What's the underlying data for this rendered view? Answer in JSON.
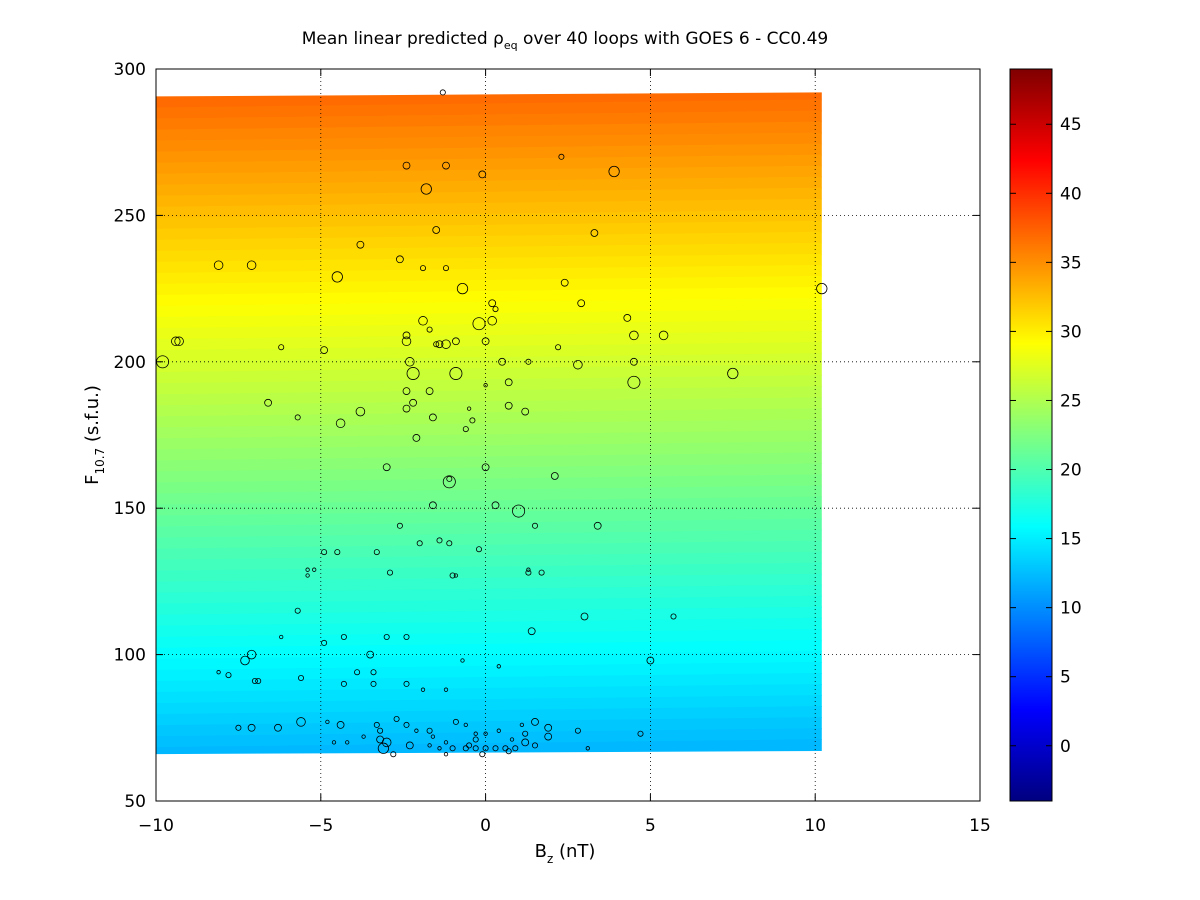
{
  "chart_data": {
    "type": "scatter",
    "title": {
      "main": "Mean linear predicted ",
      "symbol": "ρ",
      "sub": "eq",
      "rest": " over 40 loops with GOES 6 - CC0.49"
    },
    "xlabel": {
      "main": "B",
      "sub": "z",
      "rest": " (nT)"
    },
    "ylabel": {
      "main": "F",
      "sub": "10.7",
      "rest": " (s.f.u.)"
    },
    "xlim": [
      -10,
      15
    ],
    "ylim": [
      50,
      300
    ],
    "xticks": [
      -10,
      -5,
      0,
      5,
      10,
      15
    ],
    "yticks": [
      50,
      100,
      150,
      200,
      250,
      300
    ],
    "xtick_labels": [
      "−10",
      "−5",
      "0",
      "5",
      "10",
      "15"
    ],
    "ytick_labels": [
      "50",
      "100",
      "150",
      "200",
      "250",
      "300"
    ],
    "grid": "dotted",
    "background_field": {
      "x_range": [
        -10,
        10.2
      ],
      "y_range": [
        66,
        292
      ],
      "value_at_min_y": 12,
      "value_at_max_y": 37,
      "colormap": "jet"
    },
    "colorbar": {
      "range": [
        -4,
        49
      ],
      "ticks": [
        0,
        5,
        10,
        15,
        20,
        25,
        30,
        35,
        40,
        45
      ],
      "tick_labels": [
        "0",
        "5",
        "10",
        "15",
        "20",
        "25",
        "30",
        "35",
        "40",
        "45"
      ]
    },
    "points": [
      [
        -1.3,
        292,
        3
      ],
      [
        2.3,
        270,
        3
      ],
      [
        3.9,
        265,
        6
      ],
      [
        -2.4,
        267,
        4
      ],
      [
        -1.2,
        267,
        4
      ],
      [
        -0.1,
        264,
        4
      ],
      [
        -1.8,
        259,
        6
      ],
      [
        -1.5,
        245,
        4
      ],
      [
        3.3,
        244,
        4
      ],
      [
        -3.8,
        240,
        4
      ],
      [
        -2.6,
        235,
        4
      ],
      [
        -8.1,
        233,
        5
      ],
      [
        -7.1,
        233,
        5
      ],
      [
        -1.9,
        232,
        3
      ],
      [
        -1.2,
        232,
        3
      ],
      [
        -4.5,
        229,
        6
      ],
      [
        2.4,
        227,
        4
      ],
      [
        -0.7,
        225,
        6
      ],
      [
        10.2,
        225,
        6
      ],
      [
        0.2,
        220,
        4
      ],
      [
        2.9,
        220,
        4
      ],
      [
        0.3,
        218,
        3
      ],
      [
        4.3,
        215,
        4
      ],
      [
        -1.9,
        214,
        5
      ],
      [
        0.2,
        214,
        5
      ],
      [
        -0.2,
        213,
        7
      ],
      [
        -1.7,
        211,
        3
      ],
      [
        -2.4,
        209,
        4
      ],
      [
        4.5,
        209,
        5
      ],
      [
        5.4,
        209,
        5
      ],
      [
        -9.4,
        207,
        5
      ],
      [
        -9.3,
        207,
        5
      ],
      [
        -2.4,
        207,
        5
      ],
      [
        -0.9,
        207,
        4
      ],
      [
        0,
        207,
        4
      ],
      [
        -1.2,
        206,
        5
      ],
      [
        -1.4,
        206,
        4
      ],
      [
        -1.5,
        206,
        3
      ],
      [
        -6.2,
        205,
        3
      ],
      [
        -4.9,
        204,
        4
      ],
      [
        2.2,
        205,
        3
      ],
      [
        -9.8,
        200,
        7
      ],
      [
        -2.3,
        200,
        5
      ],
      [
        0.5,
        200,
        4
      ],
      [
        1.3,
        200,
        3
      ],
      [
        2.8,
        199,
        5
      ],
      [
        4.5,
        200,
        4
      ],
      [
        -2.2,
        196,
        7
      ],
      [
        -0.9,
        196,
        7
      ],
      [
        7.5,
        196,
        6
      ],
      [
        0.7,
        193,
        4
      ],
      [
        4.5,
        193,
        7
      ],
      [
        0,
        192,
        2
      ],
      [
        -2.4,
        190,
        4
      ],
      [
        -1.7,
        190,
        4
      ],
      [
        -6.6,
        186,
        4
      ],
      [
        -2.2,
        186,
        4
      ],
      [
        -2.4,
        184,
        4
      ],
      [
        0.7,
        185,
        4
      ],
      [
        -3.8,
        183,
        5
      ],
      [
        1.2,
        183,
        4
      ],
      [
        -0.5,
        184,
        2
      ],
      [
        -0.4,
        180,
        3
      ],
      [
        -5.7,
        181,
        3
      ],
      [
        -1.6,
        181,
        4
      ],
      [
        -4.4,
        179,
        5
      ],
      [
        -0.6,
        177,
        3
      ],
      [
        -2.1,
        174,
        4
      ],
      [
        -3,
        164,
        4
      ],
      [
        0,
        164,
        4
      ],
      [
        -1.1,
        160,
        3
      ],
      [
        -1.1,
        159,
        7
      ],
      [
        2.1,
        161,
        4
      ],
      [
        -1.6,
        151,
        4
      ],
      [
        0.3,
        151,
        4
      ],
      [
        1,
        149,
        7
      ],
      [
        -2.6,
        144,
        3
      ],
      [
        1.5,
        144,
        3
      ],
      [
        3.4,
        144,
        4
      ],
      [
        -1.4,
        139,
        3
      ],
      [
        -1.1,
        138,
        3
      ],
      [
        -2,
        138,
        3
      ],
      [
        -4.9,
        135,
        3
      ],
      [
        -4.5,
        135,
        3
      ],
      [
        -3.3,
        135,
        3
      ],
      [
        -0.2,
        136,
        3
      ],
      [
        -5.4,
        129,
        2
      ],
      [
        -5.2,
        129,
        2
      ],
      [
        -2.9,
        128,
        3
      ],
      [
        -1,
        127,
        3
      ],
      [
        -0.9,
        127,
        2
      ],
      [
        1.3,
        129,
        2
      ],
      [
        1.3,
        128,
        3
      ],
      [
        1.7,
        128,
        3
      ],
      [
        -5.4,
        127,
        2
      ],
      [
        -5.7,
        115,
        3
      ],
      [
        3,
        113,
        4
      ],
      [
        5.7,
        113,
        3
      ],
      [
        -6.2,
        106,
        2
      ],
      [
        -4.3,
        106,
        3
      ],
      [
        -3,
        106,
        3
      ],
      [
        -2.4,
        106,
        3
      ],
      [
        1.4,
        108,
        4
      ],
      [
        -4.9,
        104,
        3
      ],
      [
        -7.1,
        100,
        5
      ],
      [
        -3.5,
        100,
        4
      ],
      [
        -7.3,
        98,
        5
      ],
      [
        -0.7,
        98,
        2
      ],
      [
        5,
        98,
        4
      ],
      [
        0.4,
        96,
        2
      ],
      [
        -8.1,
        94,
        2
      ],
      [
        -3.9,
        94,
        3
      ],
      [
        -3.4,
        94,
        3
      ],
      [
        -7.8,
        93,
        3
      ],
      [
        -5.6,
        92,
        3
      ],
      [
        -7,
        91,
        3
      ],
      [
        -6.9,
        91,
        3
      ],
      [
        -4.3,
        90,
        3
      ],
      [
        -3.4,
        90,
        3
      ],
      [
        -2.4,
        90,
        3
      ],
      [
        -1.9,
        88,
        2
      ],
      [
        -1.2,
        88,
        2
      ],
      [
        -7.5,
        75,
        3
      ],
      [
        -7.1,
        75,
        4
      ],
      [
        -6.3,
        75,
        4
      ],
      [
        -5.6,
        77,
        5
      ],
      [
        -4.8,
        77,
        2
      ],
      [
        -4.4,
        76,
        4
      ],
      [
        -3.3,
        76,
        3
      ],
      [
        -3.2,
        74,
        3
      ],
      [
        -2.7,
        78,
        3
      ],
      [
        -2.4,
        76,
        3
      ],
      [
        -2.1,
        74,
        2
      ],
      [
        -1.7,
        74,
        3
      ],
      [
        -1.6,
        72,
        2
      ],
      [
        -1.2,
        70,
        2
      ],
      [
        -0.9,
        77,
        3
      ],
      [
        -0.6,
        76,
        2
      ],
      [
        -0.3,
        73,
        2
      ],
      [
        0,
        73,
        2
      ],
      [
        0.4,
        74,
        2
      ],
      [
        1.1,
        76,
        2
      ],
      [
        1.2,
        73,
        3
      ],
      [
        1.5,
        77,
        4
      ],
      [
        1.9,
        75,
        4
      ],
      [
        2.8,
        74,
        3
      ],
      [
        4.7,
        73,
        3
      ],
      [
        -4.6,
        70,
        2
      ],
      [
        -4.2,
        70,
        2
      ],
      [
        -3.7,
        72,
        2
      ],
      [
        -3.2,
        71,
        4
      ],
      [
        -3,
        70,
        5
      ],
      [
        -2.3,
        69,
        4
      ],
      [
        -1.7,
        69,
        2
      ],
      [
        -1.4,
        68,
        2
      ],
      [
        -1,
        68,
        3
      ],
      [
        -0.6,
        68,
        3
      ],
      [
        -0.5,
        69,
        3
      ],
      [
        -0.3,
        68,
        3
      ],
      [
        0,
        68,
        3
      ],
      [
        0.3,
        68,
        3
      ],
      [
        0.6,
        68,
        3
      ],
      [
        0.7,
        67,
        3
      ],
      [
        0.9,
        68,
        3
      ],
      [
        1.2,
        70,
        4
      ],
      [
        1.5,
        69,
        3
      ],
      [
        1.9,
        72,
        4
      ],
      [
        3.1,
        68,
        2
      ],
      [
        -3.1,
        68,
        6
      ],
      [
        -2.8,
        66,
        3
      ],
      [
        -1.2,
        66,
        2
      ],
      [
        -0.1,
        66,
        3
      ],
      [
        -0.3,
        71,
        3
      ],
      [
        0.8,
        71,
        2
      ]
    ]
  }
}
